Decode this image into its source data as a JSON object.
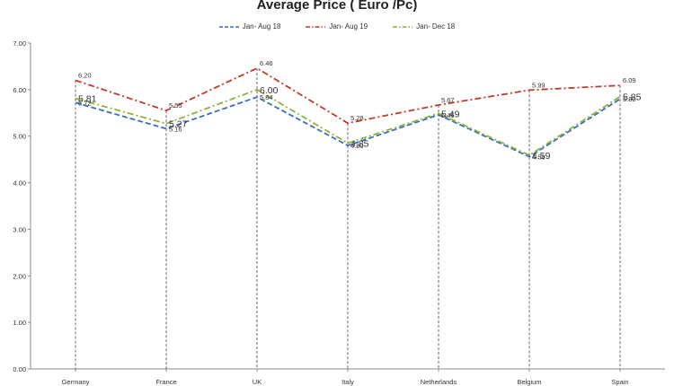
{
  "chart_data": {
    "type": "line",
    "title": "Average Price ( Euro /Pc)",
    "categories": [
      "Germany",
      "France",
      "UK",
      "Italy",
      "Netherlands",
      "Belgium",
      "Spain"
    ],
    "ylim": [
      0,
      7
    ],
    "yticks": [
      "0.00",
      "1.00",
      "2.00",
      "3.00",
      "4.00",
      "5.00",
      "6.00",
      "7.00"
    ],
    "grid": "vertical dashed drop lines at each category",
    "legend": "top-center",
    "series": [
      {
        "name": "Jan- Aug 18",
        "color": "#3a6fbf",
        "dash": "dashed",
        "values": [
          5.72,
          5.16,
          5.84,
          4.8,
          5.46,
          4.56,
          5.8
        ],
        "labels": [
          "5.72",
          "5.16",
          "5.84",
          "4.80",
          "5.46",
          "4.56",
          "5.80"
        ]
      },
      {
        "name": "Jan- Aug 19",
        "color": "#c0392b",
        "dash": "dash-dot",
        "values": [
          6.2,
          5.55,
          6.46,
          5.28,
          5.67,
          5.99,
          6.09
        ],
        "labels": [
          "6.20",
          "5.55",
          "6.46",
          "5.28",
          "5.67",
          "5.99",
          "6.09"
        ]
      },
      {
        "name": "Jan- Dec 18",
        "color": "#8db33a",
        "dash": "dash-dot",
        "values": [
          5.81,
          5.27,
          6.0,
          4.85,
          5.49,
          4.59,
          5.85
        ],
        "labels": [
          "5.81",
          "5.27",
          "6.00",
          "4.85",
          "5.49",
          "4.59",
          "5.85"
        ]
      }
    ]
  }
}
